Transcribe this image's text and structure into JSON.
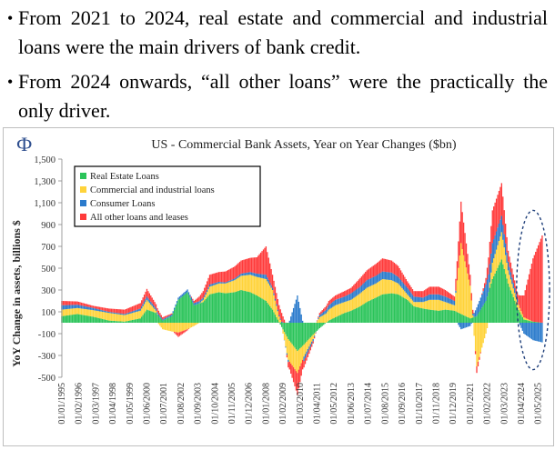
{
  "bullets": [
    {
      "marker": "•",
      "text": "From 2021 to 2024, real estate and commercial and industrial loans were the main drivers of bank credit."
    },
    {
      "marker": "•",
      "text": "From 2024 onwards, “all other loans” were the practically the only driver."
    }
  ],
  "logo_text": "Ф",
  "chart_data": {
    "type": "bar",
    "stacked": true,
    "title": "US - Commercial Bank Assets, Year on Year Changes ($bn)",
    "xlabel": "",
    "ylabel": "YoY Change in assets, billions $",
    "ylim": [
      -500,
      1500
    ],
    "yticks": [
      -500,
      -300,
      -100,
      100,
      300,
      500,
      700,
      900,
      1100,
      1300,
      1500
    ],
    "ytick_labels": [
      "-500",
      "-300",
      "-100",
      "100",
      "300",
      "500",
      "700",
      "900",
      "1,100",
      "1,300",
      "1,500"
    ],
    "x_tick_labels": [
      "01/01/1995",
      "01/02/1996",
      "01/03/1997",
      "01/04/1998",
      "01/05/1999",
      "01/06/2000",
      "01/07/2001",
      "01/08/2002",
      "01/09/2003",
      "01/10/2004",
      "01/11/2005",
      "01/12/2006",
      "01/01/2008",
      "01/02/2009",
      "01/03/2010",
      "01/04/2011",
      "01/05/2012",
      "01/06/2013",
      "01/07/2014",
      "01/08/2015",
      "01/09/2016",
      "01/10/2017",
      "01/11/2018",
      "01/12/2019",
      "01/01/2021",
      "01/02/2022",
      "01/03/2023",
      "01/04/2024",
      "01/05/2025"
    ],
    "x_start": "1995-01",
    "x_end": "2025-08",
    "legend_position": "top-left",
    "grid": false,
    "series": [
      {
        "name": "Real Estate Loans",
        "color": "#2bc45a",
        "points": [
          [
            "1995-01",
            60
          ],
          [
            "1996-01",
            80
          ],
          [
            "1997-01",
            55
          ],
          [
            "1998-01",
            20
          ],
          [
            "1999-01",
            10
          ],
          [
            "2000-01",
            40
          ],
          [
            "2000-06",
            120
          ],
          [
            "2001-01",
            90
          ],
          [
            "2001-06",
            20
          ],
          [
            "2002-01",
            60
          ],
          [
            "2002-06",
            210
          ],
          [
            "2003-01",
            280
          ],
          [
            "2003-06",
            160
          ],
          [
            "2004-01",
            190
          ],
          [
            "2004-06",
            260
          ],
          [
            "2005-01",
            280
          ],
          [
            "2005-06",
            270
          ],
          [
            "2006-01",
            280
          ],
          [
            "2006-06",
            300
          ],
          [
            "2007-01",
            280
          ],
          [
            "2007-06",
            250
          ],
          [
            "2008-01",
            200
          ],
          [
            "2008-06",
            120
          ],
          [
            "2009-01",
            -40
          ],
          [
            "2009-06",
            -150
          ],
          [
            "2010-01",
            -260
          ],
          [
            "2010-06",
            -200
          ],
          [
            "2011-01",
            -110
          ],
          [
            "2011-06",
            -50
          ],
          [
            "2012-01",
            20
          ],
          [
            "2012-06",
            50
          ],
          [
            "2013-01",
            90
          ],
          [
            "2013-06",
            110
          ],
          [
            "2014-01",
            150
          ],
          [
            "2014-06",
            190
          ],
          [
            "2015-01",
            230
          ],
          [
            "2015-06",
            260
          ],
          [
            "2016-01",
            270
          ],
          [
            "2016-06",
            260
          ],
          [
            "2017-01",
            210
          ],
          [
            "2017-06",
            150
          ],
          [
            "2018-01",
            130
          ],
          [
            "2018-06",
            120
          ],
          [
            "2019-01",
            110
          ],
          [
            "2019-06",
            120
          ],
          [
            "2020-01",
            110
          ],
          [
            "2020-06",
            80
          ],
          [
            "2021-01",
            40
          ],
          [
            "2021-06",
            60
          ],
          [
            "2022-01",
            200
          ],
          [
            "2022-06",
            400
          ],
          [
            "2023-01",
            580
          ],
          [
            "2023-06",
            360
          ],
          [
            "2024-01",
            140
          ],
          [
            "2024-06",
            30
          ],
          [
            "2025-01",
            10
          ],
          [
            "2025-08",
            0
          ]
        ]
      },
      {
        "name": "Commercial and industrial loans",
        "color": "#ffd33a",
        "points": [
          [
            "1995-01",
            60
          ],
          [
            "1996-01",
            55
          ],
          [
            "1997-01",
            60
          ],
          [
            "1998-01",
            70
          ],
          [
            "1999-01",
            60
          ],
          [
            "2000-01",
            70
          ],
          [
            "2000-06",
            90
          ],
          [
            "2001-01",
            20
          ],
          [
            "2001-06",
            -60
          ],
          [
            "2002-01",
            -80
          ],
          [
            "2002-06",
            -90
          ],
          [
            "2003-01",
            -60
          ],
          [
            "2003-06",
            -30
          ],
          [
            "2004-01",
            20
          ],
          [
            "2004-06",
            70
          ],
          [
            "2005-01",
            80
          ],
          [
            "2005-06",
            90
          ],
          [
            "2006-01",
            110
          ],
          [
            "2006-06",
            130
          ],
          [
            "2007-01",
            160
          ],
          [
            "2007-06",
            170
          ],
          [
            "2008-01",
            200
          ],
          [
            "2008-06",
            180
          ],
          [
            "2009-01",
            0
          ],
          [
            "2009-06",
            -190
          ],
          [
            "2010-01",
            -200
          ],
          [
            "2010-06",
            -110
          ],
          [
            "2011-01",
            -40
          ],
          [
            "2011-06",
            50
          ],
          [
            "2012-01",
            100
          ],
          [
            "2012-06",
            110
          ],
          [
            "2013-01",
            100
          ],
          [
            "2013-06",
            100
          ],
          [
            "2014-01",
            120
          ],
          [
            "2014-06",
            130
          ],
          [
            "2015-01",
            130
          ],
          [
            "2015-06",
            140
          ],
          [
            "2016-01",
            120
          ],
          [
            "2016-06",
            100
          ],
          [
            "2017-01",
            50
          ],
          [
            "2017-06",
            40
          ],
          [
            "2018-01",
            60
          ],
          [
            "2018-06",
            90
          ],
          [
            "2019-01",
            100
          ],
          [
            "2019-06",
            70
          ],
          [
            "2020-01",
            50
          ],
          [
            "2020-06",
            650
          ],
          [
            "2021-01",
            300
          ],
          [
            "2021-06",
            -400
          ],
          [
            "2022-01",
            -100
          ],
          [
            "2022-06",
            150
          ],
          [
            "2023-01",
            250
          ],
          [
            "2023-06",
            120
          ],
          [
            "2024-01",
            50
          ],
          [
            "2024-06",
            20
          ],
          [
            "2025-01",
            0
          ],
          [
            "2025-08",
            0
          ]
        ]
      },
      {
        "name": "Consumer Loans",
        "color": "#2b7bcc",
        "points": [
          [
            "1995-01",
            40
          ],
          [
            "1996-01",
            30
          ],
          [
            "1997-01",
            20
          ],
          [
            "1998-01",
            10
          ],
          [
            "1999-01",
            10
          ],
          [
            "2000-01",
            20
          ],
          [
            "2000-06",
            30
          ],
          [
            "2001-01",
            20
          ],
          [
            "2001-06",
            10
          ],
          [
            "2002-01",
            15
          ],
          [
            "2002-06",
            20
          ],
          [
            "2003-01",
            25
          ],
          [
            "2003-06",
            20
          ],
          [
            "2004-01",
            20
          ],
          [
            "2004-06",
            20
          ],
          [
            "2005-01",
            15
          ],
          [
            "2005-06",
            10
          ],
          [
            "2006-01",
            15
          ],
          [
            "2006-06",
            20
          ],
          [
            "2007-01",
            25
          ],
          [
            "2007-06",
            30
          ],
          [
            "2008-01",
            40
          ],
          [
            "2008-06",
            20
          ],
          [
            "2009-01",
            10
          ],
          [
            "2009-06",
            -20
          ],
          [
            "2010-01",
            250
          ],
          [
            "2010-06",
            -40
          ],
          [
            "2011-01",
            -20
          ],
          [
            "2011-06",
            20
          ],
          [
            "2012-01",
            40
          ],
          [
            "2012-06",
            50
          ],
          [
            "2013-01",
            50
          ],
          [
            "2013-06",
            60
          ],
          [
            "2014-01",
            60
          ],
          [
            "2014-06",
            70
          ],
          [
            "2015-01",
            70
          ],
          [
            "2015-06",
            70
          ],
          [
            "2016-01",
            70
          ],
          [
            "2016-06",
            60
          ],
          [
            "2017-01",
            60
          ],
          [
            "2017-06",
            50
          ],
          [
            "2018-01",
            40
          ],
          [
            "2018-06",
            50
          ],
          [
            "2019-01",
            50
          ],
          [
            "2019-06",
            50
          ],
          [
            "2020-01",
            40
          ],
          [
            "2020-06",
            -60
          ],
          [
            "2021-01",
            -30
          ],
          [
            "2021-06",
            80
          ],
          [
            "2022-01",
            150
          ],
          [
            "2022-06",
            180
          ],
          [
            "2023-01",
            150
          ],
          [
            "2023-06",
            80
          ],
          [
            "2024-01",
            30
          ],
          [
            "2024-06",
            -100
          ],
          [
            "2025-01",
            -160
          ],
          [
            "2025-08",
            -180
          ]
        ]
      },
      {
        "name": "All other loans and leases",
        "color": "#ff3b3b",
        "points": [
          [
            "1995-01",
            40
          ],
          [
            "1996-01",
            30
          ],
          [
            "1997-01",
            20
          ],
          [
            "1998-01",
            30
          ],
          [
            "1999-01",
            40
          ],
          [
            "2000-01",
            50
          ],
          [
            "2000-06",
            70
          ],
          [
            "2001-01",
            40
          ],
          [
            "2001-06",
            20
          ],
          [
            "2002-01",
            10
          ],
          [
            "2002-06",
            -40
          ],
          [
            "2003-01",
            -10
          ],
          [
            "2003-06",
            20
          ],
          [
            "2004-01",
            60
          ],
          [
            "2004-06",
            90
          ],
          [
            "2005-01",
            90
          ],
          [
            "2005-06",
            100
          ],
          [
            "2006-01",
            110
          ],
          [
            "2006-06",
            120
          ],
          [
            "2007-01",
            130
          ],
          [
            "2007-06",
            150
          ],
          [
            "2008-01",
            260
          ],
          [
            "2008-06",
            120
          ],
          [
            "2009-01",
            80
          ],
          [
            "2009-06",
            -50
          ],
          [
            "2010-01",
            -200
          ],
          [
            "2010-06",
            -60
          ],
          [
            "2011-01",
            -20
          ],
          [
            "2011-06",
            20
          ],
          [
            "2012-01",
            40
          ],
          [
            "2012-06",
            40
          ],
          [
            "2013-01",
            50
          ],
          [
            "2013-06",
            50
          ],
          [
            "2014-01",
            80
          ],
          [
            "2014-06",
            90
          ],
          [
            "2015-01",
            110
          ],
          [
            "2015-06",
            120
          ],
          [
            "2016-01",
            110
          ],
          [
            "2016-06",
            100
          ],
          [
            "2017-01",
            60
          ],
          [
            "2017-06",
            50
          ],
          [
            "2018-01",
            60
          ],
          [
            "2018-06",
            70
          ],
          [
            "2019-01",
            70
          ],
          [
            "2019-06",
            60
          ],
          [
            "2020-01",
            40
          ],
          [
            "2020-06",
            380
          ],
          [
            "2021-01",
            100
          ],
          [
            "2021-06",
            -60
          ],
          [
            "2022-01",
            60
          ],
          [
            "2022-06",
            300
          ],
          [
            "2023-01",
            300
          ],
          [
            "2023-06",
            100
          ],
          [
            "2024-01",
            60
          ],
          [
            "2024-06",
            200
          ],
          [
            "2025-01",
            580
          ],
          [
            "2025-08",
            800
          ]
        ]
      }
    ],
    "annotation": {
      "type": "dashed-ellipse",
      "start": "2024-06",
      "end": "2025-08",
      "ymin": -430,
      "ymax": 1030
    }
  }
}
